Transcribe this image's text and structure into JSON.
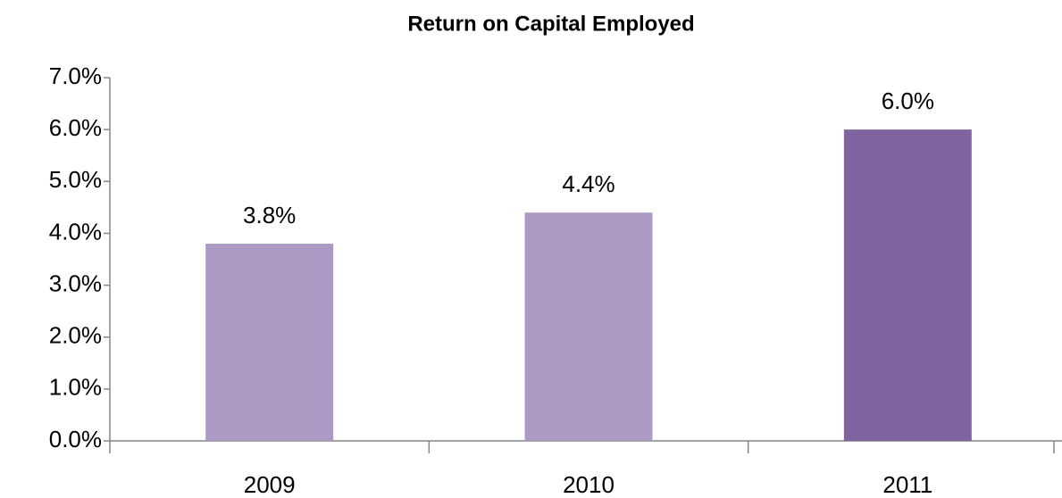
{
  "chart_data": {
    "type": "bar",
    "title": "Return on Capital Employed",
    "categories": [
      "2009",
      "2010",
      "2011"
    ],
    "values": [
      3.8,
      4.4,
      6.0
    ],
    "value_labels": [
      "3.8%",
      "4.4%",
      "6.0%"
    ],
    "colors": [
      "#ac9ac4",
      "#ac9ac4",
      "#8064a2"
    ],
    "ylim": [
      0,
      7
    ],
    "yticks": [
      {
        "value": 0,
        "label": "0.0%"
      },
      {
        "value": 1,
        "label": "1.0%"
      },
      {
        "value": 2,
        "label": "2.0%"
      },
      {
        "value": 3,
        "label": "3.0%"
      },
      {
        "value": 4,
        "label": "4.0%"
      },
      {
        "value": 5,
        "label": "5.0%"
      },
      {
        "value": 6,
        "label": "6.0%"
      },
      {
        "value": 7,
        "label": "7.0%"
      }
    ],
    "grid": false
  }
}
